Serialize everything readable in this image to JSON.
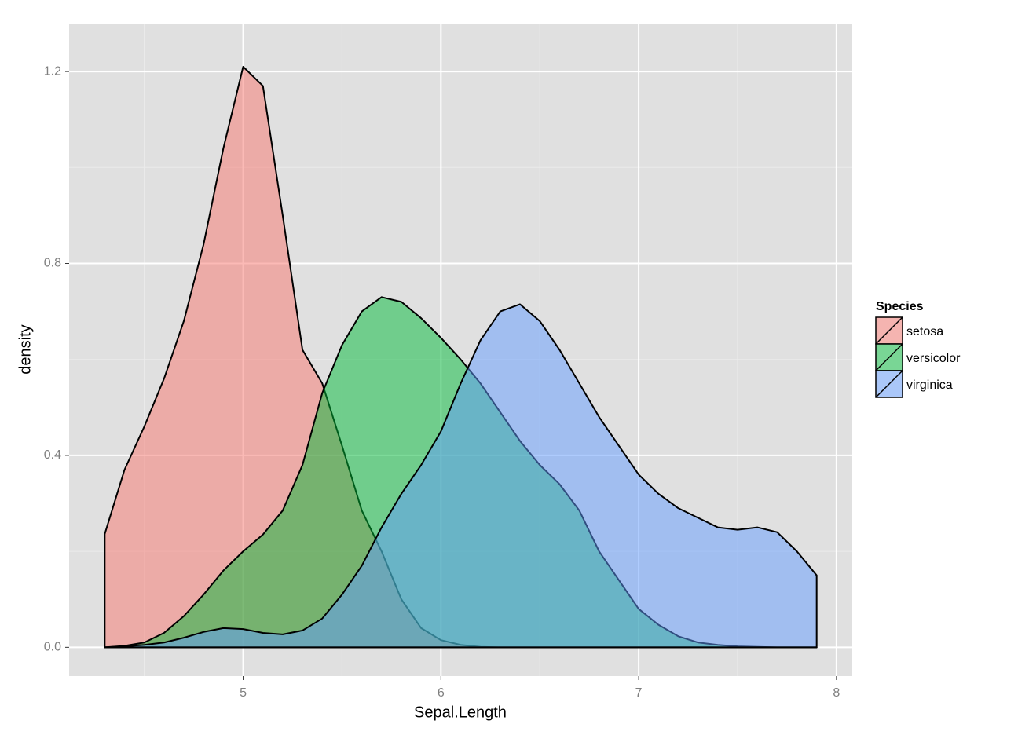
{
  "chart_data": {
    "type": "density",
    "x_label": "Sepal.Length",
    "y_label": "density",
    "legend_title": "Species",
    "legend_position": "right",
    "x": [
      4.3,
      4.4,
      4.5,
      4.6,
      4.7,
      4.8,
      4.9,
      5.0,
      5.1,
      5.2,
      5.3,
      5.4,
      5.5,
      5.6,
      5.7,
      5.8,
      5.9,
      6.0,
      6.1,
      6.2,
      6.3,
      6.4,
      6.5,
      6.6,
      6.7,
      6.8,
      6.9,
      7.0,
      7.1,
      7.2,
      7.3,
      7.4,
      7.5,
      7.6,
      7.7,
      7.8,
      7.9
    ],
    "series": [
      {
        "name": "setosa",
        "color": "#F8766D",
        "values": [
          0.236,
          0.37,
          0.46,
          0.56,
          0.68,
          0.84,
          1.04,
          1.21,
          1.17,
          0.9,
          0.62,
          0.55,
          0.42,
          0.285,
          0.2,
          0.1,
          0.04,
          0.015,
          0.005,
          0.001,
          0,
          0,
          0,
          0,
          0,
          0,
          0,
          0,
          0,
          0,
          0,
          0,
          0,
          0,
          0,
          0,
          0
        ]
      },
      {
        "name": "versicolor",
        "color": "#00BA38",
        "values": [
          0,
          0.003,
          0.01,
          0.03,
          0.065,
          0.11,
          0.16,
          0.2,
          0.235,
          0.285,
          0.38,
          0.53,
          0.63,
          0.7,
          0.73,
          0.72,
          0.686,
          0.645,
          0.6,
          0.55,
          0.49,
          0.43,
          0.38,
          0.34,
          0.285,
          0.2,
          0.14,
          0.08,
          0.047,
          0.023,
          0.01,
          0.005,
          0.002,
          0.001,
          0,
          0,
          0
        ]
      },
      {
        "name": "virginica",
        "color": "#619CFF",
        "values": [
          0,
          0.002,
          0.005,
          0.01,
          0.02,
          0.032,
          0.04,
          0.038,
          0.03,
          0.027,
          0.035,
          0.06,
          0.11,
          0.17,
          0.25,
          0.32,
          0.38,
          0.45,
          0.55,
          0.64,
          0.7,
          0.715,
          0.68,
          0.62,
          0.55,
          0.48,
          0.42,
          0.36,
          0.32,
          0.29,
          0.27,
          0.25,
          0.245,
          0.25,
          0.24,
          0.2,
          0.15
        ]
      }
    ],
    "alpha": 0.5,
    "xlim": [
      4.12,
      8.08
    ],
    "xticks": [
      5,
      6,
      7,
      8
    ],
    "ylim": [
      -0.06,
      1.3
    ],
    "yticks": [
      {
        "value": 0,
        "label": "0.0"
      },
      {
        "value": 0.4,
        "label": "0.4"
      },
      {
        "value": 0.8,
        "label": "0.8"
      },
      {
        "value": 1.2,
        "label": "1.2"
      }
    ],
    "grid": true
  }
}
